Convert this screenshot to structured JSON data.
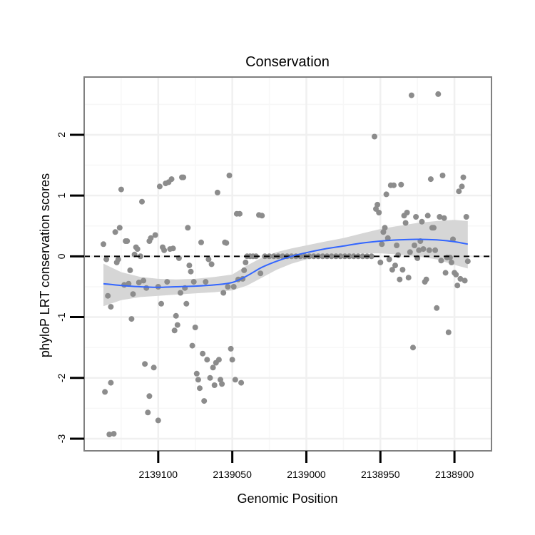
{
  "chart_data": {
    "type": "scatter",
    "title": "Conservation",
    "xlabel": "Genomic Position",
    "ylabel": "phyloP LRT conservation scores",
    "x_reversed": true,
    "xlim": [
      2139150,
      2138875
    ],
    "ylim": [
      -3.2,
      2.95
    ],
    "x_ticks": [
      2139100,
      2139050,
      2139000,
      2138950,
      2138900
    ],
    "x_tick_labels": [
      "2139100",
      "2139050",
      "2139000",
      "2138950",
      "2138900"
    ],
    "y_ticks": [
      -3,
      -2,
      -1,
      0,
      1,
      2
    ],
    "y_tick_labels": [
      "-3",
      "-2",
      "-1",
      "0",
      "1",
      "2"
    ],
    "reference_line": {
      "y": 0,
      "style": "dashed"
    },
    "colors": {
      "points": "#8c8c8c",
      "smooth": "#3366ff",
      "ribbon": "#d4d4d4"
    },
    "points": [
      {
        "x": 2139137,
        "y": 0.2
      },
      {
        "x": 2139136,
        "y": -2.23
      },
      {
        "x": 2139135,
        "y": -0.05
      },
      {
        "x": 2139134,
        "y": -0.65
      },
      {
        "x": 2139133,
        "y": -2.93
      },
      {
        "x": 2139132,
        "y": -2.08
      },
      {
        "x": 2139132,
        "y": -0.83
      },
      {
        "x": 2139130,
        "y": -2.92
      },
      {
        "x": 2139129,
        "y": 0.4
      },
      {
        "x": 2139128,
        "y": -0.1
      },
      {
        "x": 2139127,
        "y": -0.05
      },
      {
        "x": 2139126,
        "y": 0.47
      },
      {
        "x": 2139125,
        "y": 1.1
      },
      {
        "x": 2139123,
        "y": -0.47
      },
      {
        "x": 2139122,
        "y": 0.25
      },
      {
        "x": 2139121,
        "y": 0.25
      },
      {
        "x": 2139120,
        "y": -0.45
      },
      {
        "x": 2139119,
        "y": -0.23
      },
      {
        "x": 2139118,
        "y": -1.03
      },
      {
        "x": 2139117,
        "y": -0.62
      },
      {
        "x": 2139116,
        "y": 0.03
      },
      {
        "x": 2139115,
        "y": 0.15
      },
      {
        "x": 2139114,
        "y": 0.12
      },
      {
        "x": 2139113,
        "y": -0.43
      },
      {
        "x": 2139112,
        "y": 0.0
      },
      {
        "x": 2139111,
        "y": 0.9
      },
      {
        "x": 2139110,
        "y": -0.4
      },
      {
        "x": 2139109,
        "y": -1.77
      },
      {
        "x": 2139108,
        "y": -0.52
      },
      {
        "x": 2139107,
        "y": -2.57
      },
      {
        "x": 2139106,
        "y": -2.3
      },
      {
        "x": 2139106,
        "y": 0.25
      },
      {
        "x": 2139105,
        "y": 0.3
      },
      {
        "x": 2139103,
        "y": -1.83
      },
      {
        "x": 2139102,
        "y": 0.35
      },
      {
        "x": 2139100,
        "y": -0.5
      },
      {
        "x": 2139100,
        "y": -2.7
      },
      {
        "x": 2139099,
        "y": 1.15
      },
      {
        "x": 2139098,
        "y": -0.78
      },
      {
        "x": 2139097,
        "y": 0.15
      },
      {
        "x": 2139096,
        "y": 0.1
      },
      {
        "x": 2139095,
        "y": 1.2
      },
      {
        "x": 2139094,
        "y": -0.42
      },
      {
        "x": 2139093,
        "y": 1.22
      },
      {
        "x": 2139092,
        "y": 0.12
      },
      {
        "x": 2139091,
        "y": 1.27
      },
      {
        "x": 2139090,
        "y": 0.13
      },
      {
        "x": 2139089,
        "y": -1.22
      },
      {
        "x": 2139088,
        "y": -0.98
      },
      {
        "x": 2139087,
        "y": -1.13
      },
      {
        "x": 2139086,
        "y": -0.03
      },
      {
        "x": 2139085,
        "y": -0.6
      },
      {
        "x": 2139084,
        "y": 1.3
      },
      {
        "x": 2139083,
        "y": 1.3
      },
      {
        "x": 2139082,
        "y": -0.52
      },
      {
        "x": 2139081,
        "y": -0.78
      },
      {
        "x": 2139080,
        "y": 0.47
      },
      {
        "x": 2139079,
        "y": -0.15
      },
      {
        "x": 2139078,
        "y": -0.25
      },
      {
        "x": 2139077,
        "y": -1.47
      },
      {
        "x": 2139076,
        "y": -0.42
      },
      {
        "x": 2139075,
        "y": -1.17
      },
      {
        "x": 2139074,
        "y": -1.93
      },
      {
        "x": 2139073,
        "y": -2.03
      },
      {
        "x": 2139072,
        "y": -2.17
      },
      {
        "x": 2139071,
        "y": 0.23
      },
      {
        "x": 2139070,
        "y": -1.6
      },
      {
        "x": 2139069,
        "y": -2.38
      },
      {
        "x": 2139068,
        "y": -0.42
      },
      {
        "x": 2139067,
        "y": -1.7
      },
      {
        "x": 2139066,
        "y": -0.05
      },
      {
        "x": 2139065,
        "y": -2.0
      },
      {
        "x": 2139064,
        "y": -0.13
      },
      {
        "x": 2139063,
        "y": -1.83
      },
      {
        "x": 2139062,
        "y": -2.12
      },
      {
        "x": 2139061,
        "y": -1.75
      },
      {
        "x": 2139060,
        "y": 1.05
      },
      {
        "x": 2139059,
        "y": -1.7
      },
      {
        "x": 2139058,
        "y": -2.03
      },
      {
        "x": 2139057,
        "y": -2.1
      },
      {
        "x": 2139056,
        "y": -0.6
      },
      {
        "x": 2139055,
        "y": 0.23
      },
      {
        "x": 2139054,
        "y": 0.22
      },
      {
        "x": 2139053,
        "y": -0.5
      },
      {
        "x": 2139052,
        "y": 1.33
      },
      {
        "x": 2139051,
        "y": -1.52
      },
      {
        "x": 2139050,
        "y": -1.7
      },
      {
        "x": 2139049,
        "y": -0.5
      },
      {
        "x": 2139048,
        "y": -2.03
      },
      {
        "x": 2139047,
        "y": 0.7
      },
      {
        "x": 2139046,
        "y": -0.38
      },
      {
        "x": 2139045,
        "y": 0.7
      },
      {
        "x": 2139044,
        "y": -2.08
      },
      {
        "x": 2139043,
        "y": -0.37
      },
      {
        "x": 2139042,
        "y": -0.23
      },
      {
        "x": 2139041,
        "y": -0.1
      },
      {
        "x": 2139040,
        "y": 0.0
      },
      {
        "x": 2139038,
        "y": 0.0
      },
      {
        "x": 2139036,
        "y": 0.0
      },
      {
        "x": 2139034,
        "y": 0.0
      },
      {
        "x": 2139032,
        "y": 0.68
      },
      {
        "x": 2139031,
        "y": -0.28
      },
      {
        "x": 2139030,
        "y": 0.67
      },
      {
        "x": 2139028,
        "y": 0.0
      },
      {
        "x": 2139025,
        "y": 0.0
      },
      {
        "x": 2139022,
        "y": 0.0
      },
      {
        "x": 2139019,
        "y": 0.0
      },
      {
        "x": 2139016,
        "y": 0.0
      },
      {
        "x": 2139013,
        "y": 0.0
      },
      {
        "x": 2139010,
        "y": 0.0
      },
      {
        "x": 2139007,
        "y": 0.0
      },
      {
        "x": 2139004,
        "y": 0.0
      },
      {
        "x": 2139001,
        "y": 0.0
      },
      {
        "x": 2138998,
        "y": 0.0
      },
      {
        "x": 2138995,
        "y": 0.0
      },
      {
        "x": 2138992,
        "y": 0.0
      },
      {
        "x": 2138989,
        "y": 0.0
      },
      {
        "x": 2138986,
        "y": 0.0
      },
      {
        "x": 2138983,
        "y": 0.0
      },
      {
        "x": 2138980,
        "y": 0.0
      },
      {
        "x": 2138977,
        "y": 0.0
      },
      {
        "x": 2138974,
        "y": 0.0
      },
      {
        "x": 2138971,
        "y": 0.0
      },
      {
        "x": 2138968,
        "y": 0.0
      },
      {
        "x": 2138965,
        "y": 0.0
      },
      {
        "x": 2138962,
        "y": 0.0
      },
      {
        "x": 2138959,
        "y": 0.0
      },
      {
        "x": 2138956,
        "y": 0.0
      },
      {
        "x": 2138954,
        "y": 1.97
      },
      {
        "x": 2138953,
        "y": 0.78
      },
      {
        "x": 2138952,
        "y": 0.85
      },
      {
        "x": 2138951,
        "y": 0.72
      },
      {
        "x": 2138950,
        "y": -0.1
      },
      {
        "x": 2138949,
        "y": 0.2
      },
      {
        "x": 2138948,
        "y": 0.4
      },
      {
        "x": 2138947,
        "y": 0.47
      },
      {
        "x": 2138946,
        "y": 1.02
      },
      {
        "x": 2138945,
        "y": 0.3
      },
      {
        "x": 2138944,
        "y": -0.05
      },
      {
        "x": 2138943,
        "y": 1.17
      },
      {
        "x": 2138942,
        "y": -0.22
      },
      {
        "x": 2138941,
        "y": 1.17
      },
      {
        "x": 2138940,
        "y": -0.15
      },
      {
        "x": 2138939,
        "y": 0.18
      },
      {
        "x": 2138938,
        "y": 0.02
      },
      {
        "x": 2138937,
        "y": -0.38
      },
      {
        "x": 2138936,
        "y": 1.18
      },
      {
        "x": 2138935,
        "y": -0.22
      },
      {
        "x": 2138934,
        "y": 0.67
      },
      {
        "x": 2138933,
        "y": 0.55
      },
      {
        "x": 2138932,
        "y": 0.72
      },
      {
        "x": 2138931,
        "y": -0.35
      },
      {
        "x": 2138930,
        "y": 0.07
      },
      {
        "x": 2138929,
        "y": 2.65
      },
      {
        "x": 2138928,
        "y": -1.5
      },
      {
        "x": 2138927,
        "y": 0.18
      },
      {
        "x": 2138926,
        "y": 0.65
      },
      {
        "x": 2138925,
        "y": -0.03
      },
      {
        "x": 2138924,
        "y": 0.1
      },
      {
        "x": 2138923,
        "y": 0.25
      },
      {
        "x": 2138922,
        "y": 0.57
      },
      {
        "x": 2138921,
        "y": 0.12
      },
      {
        "x": 2138920,
        "y": -0.42
      },
      {
        "x": 2138919,
        "y": -0.38
      },
      {
        "x": 2138918,
        "y": 0.67
      },
      {
        "x": 2138917,
        "y": 0.1
      },
      {
        "x": 2138916,
        "y": 1.27
      },
      {
        "x": 2138915,
        "y": 0.47
      },
      {
        "x": 2138914,
        "y": 0.47
      },
      {
        "x": 2138913,
        "y": 0.1
      },
      {
        "x": 2138912,
        "y": -0.85
      },
      {
        "x": 2138911,
        "y": 2.67
      },
      {
        "x": 2138910,
        "y": 0.65
      },
      {
        "x": 2138909,
        "y": -0.07
      },
      {
        "x": 2138908,
        "y": 1.33
      },
      {
        "x": 2138907,
        "y": 0.63
      },
      {
        "x": 2138906,
        "y": -0.27
      },
      {
        "x": 2138905,
        "y": -0.02
      },
      {
        "x": 2138904,
        "y": -1.25
      },
      {
        "x": 2138903,
        "y": -0.02
      },
      {
        "x": 2138902,
        "y": -0.1
      },
      {
        "x": 2138901,
        "y": 0.28
      },
      {
        "x": 2138900,
        "y": -0.27
      },
      {
        "x": 2138899,
        "y": -0.3
      },
      {
        "x": 2138898,
        "y": -0.48
      },
      {
        "x": 2138897,
        "y": 1.07
      },
      {
        "x": 2138896,
        "y": -0.37
      },
      {
        "x": 2138895,
        "y": 1.15
      },
      {
        "x": 2138894,
        "y": 1.3
      },
      {
        "x": 2138893,
        "y": -0.4
      },
      {
        "x": 2138892,
        "y": 0.65
      },
      {
        "x": 2138891,
        "y": -0.08
      }
    ],
    "smooth": {
      "x": [
        2139137,
        2139125,
        2139112,
        2139100,
        2139088,
        2139075,
        2139062,
        2139050,
        2139040,
        2139030,
        2139020,
        2139010,
        2139000,
        2138988,
        2138975,
        2138962,
        2138950,
        2138938,
        2138925,
        2138912,
        2138900,
        2138891
      ],
      "y": [
        -0.45,
        -0.48,
        -0.5,
        -0.51,
        -0.5,
        -0.49,
        -0.47,
        -0.43,
        -0.32,
        -0.18,
        -0.08,
        0.0,
        0.06,
        0.12,
        0.17,
        0.22,
        0.25,
        0.27,
        0.28,
        0.27,
        0.24,
        0.2
      ],
      "lower": [
        -0.82,
        -0.72,
        -0.67,
        -0.65,
        -0.63,
        -0.61,
        -0.59,
        -0.56,
        -0.48,
        -0.35,
        -0.22,
        -0.12,
        -0.05,
        0.0,
        0.03,
        0.05,
        0.05,
        0.03,
        0.0,
        -0.05,
        -0.14,
        -0.2
      ],
      "upper": [
        -0.12,
        -0.26,
        -0.34,
        -0.37,
        -0.38,
        -0.37,
        -0.34,
        -0.3,
        -0.15,
        -0.02,
        0.07,
        0.13,
        0.18,
        0.24,
        0.3,
        0.38,
        0.45,
        0.5,
        0.55,
        0.58,
        0.6,
        0.58
      ]
    }
  }
}
